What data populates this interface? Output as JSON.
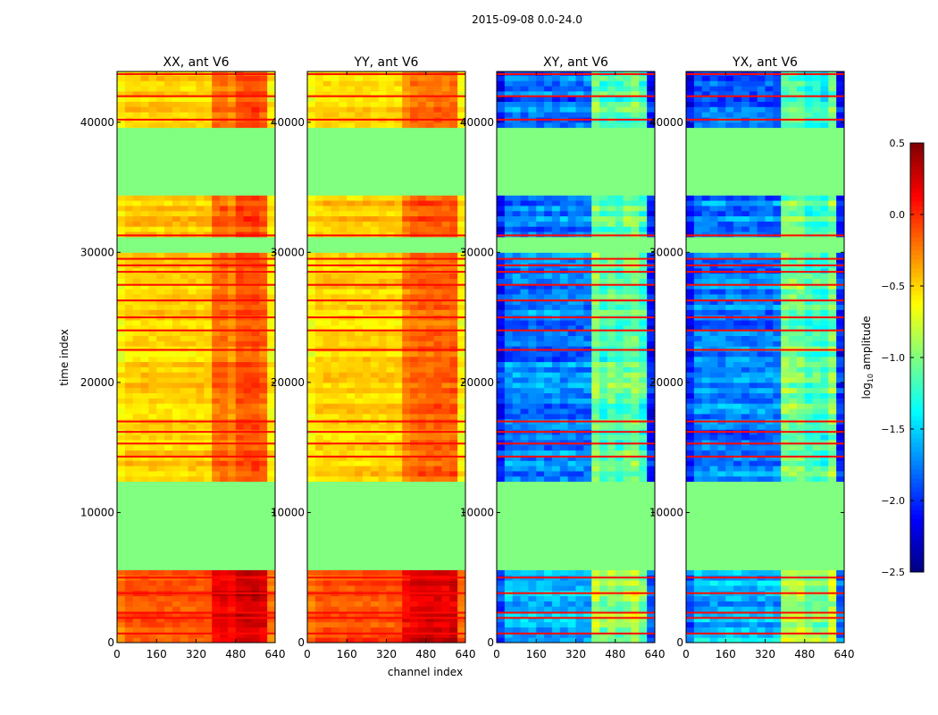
{
  "chart_data": {
    "type": "heatmap",
    "title": "2015-09-08 0.0-24.0",
    "xlabel": "channel index",
    "ylabel": "time index",
    "xlim": [
      0,
      640
    ],
    "ylim": [
      0,
      43900
    ],
    "xticks": [
      "0",
      "160",
      "320",
      "480",
      "640"
    ],
    "yticks": [
      "0",
      "10000",
      "20000",
      "30000",
      "40000"
    ],
    "colormap": "jet",
    "colorbar": {
      "label_main": "log",
      "label_sub": "10",
      "label_tail": " amplitude",
      "range": [
        -2.5,
        0.5
      ],
      "ticks": [
        "0.5",
        "0.0",
        "−0.5",
        "−1.0",
        "−1.5",
        "−2.0",
        "−2.5"
      ]
    },
    "panels": [
      {
        "title": "XX, ant V6",
        "kind": "auto"
      },
      {
        "title": "YY, ant V6",
        "kind": "auto"
      },
      {
        "title": "XY, ant V6",
        "kind": "cross"
      },
      {
        "title": "YX, ant V6",
        "kind": "cross"
      }
    ],
    "flag_value": -1.0,
    "time_segments": [
      {
        "start": 0,
        "end": 5400,
        "auto": -0.1,
        "cross": -1.55
      },
      {
        "start": 5400,
        "end": 12200,
        "flagged": true
      },
      {
        "start": 12200,
        "end": 29800,
        "auto": -0.5,
        "cross": -1.75
      },
      {
        "start": 29800,
        "end": 31000,
        "flagged": true
      },
      {
        "start": 31000,
        "end": 34300,
        "auto": -0.45,
        "cross": -1.75
      },
      {
        "start": 34300,
        "end": 39300,
        "flagged": true
      },
      {
        "start": 39300,
        "end": 43900,
        "auto": -0.5,
        "cross": -1.8
      }
    ],
    "channel_band": {
      "start": 400,
      "end": 620,
      "auto_boost": 0.35,
      "cross_boost": 0.8
    },
    "rfi_lines": [
      700,
      1900,
      2300,
      3800,
      5000,
      14300,
      15300,
      16200,
      17000,
      22500,
      24000,
      25000,
      26300,
      27500,
      28500,
      29000,
      29500,
      31300,
      40200,
      42000,
      43700
    ],
    "rfi_value": 0.1
  }
}
